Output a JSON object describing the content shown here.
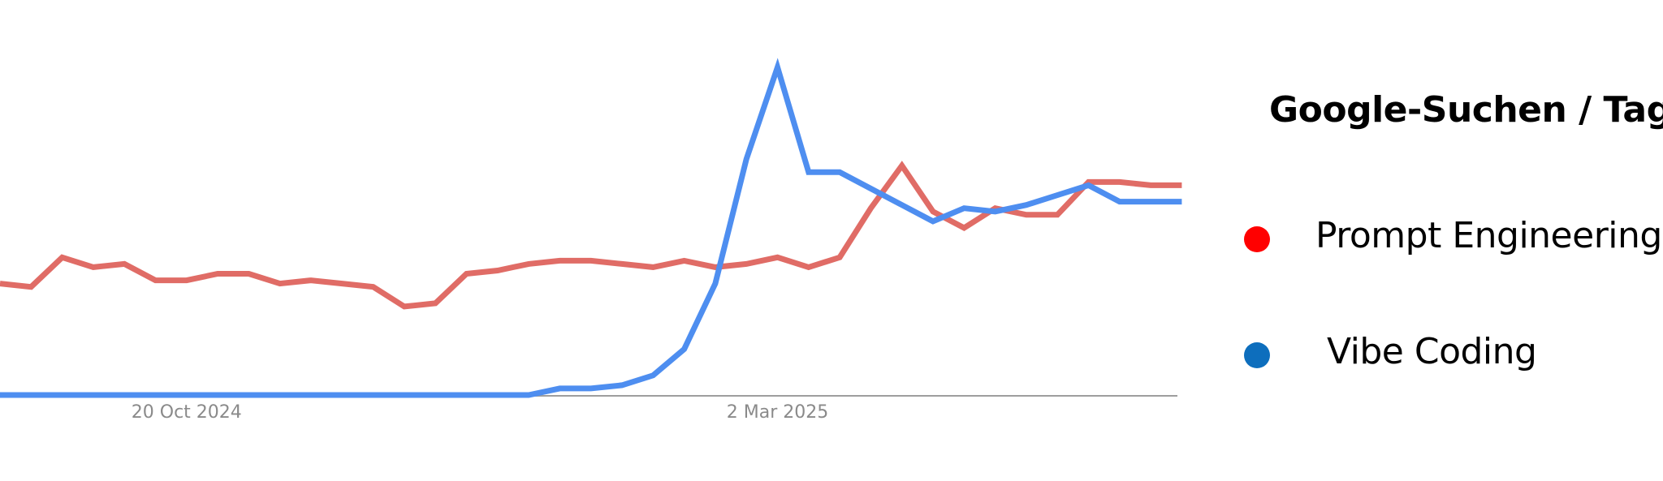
{
  "chart_data": {
    "type": "line",
    "title": "",
    "legend_title": "Google-Suchen / Tag",
    "x_tick_labels": [
      "20 Oct 2024",
      "2 Mar 2025"
    ],
    "x": [
      "2024-09-08",
      "2024-09-15",
      "2024-09-22",
      "2024-09-29",
      "2024-10-06",
      "2024-10-13",
      "2024-10-20",
      "2024-10-27",
      "2024-11-03",
      "2024-11-10",
      "2024-11-17",
      "2024-11-24",
      "2024-12-01",
      "2024-12-08",
      "2024-12-15",
      "2024-12-22",
      "2024-12-29",
      "2025-01-05",
      "2025-01-12",
      "2025-01-19",
      "2025-01-26",
      "2025-02-02",
      "2025-02-09",
      "2025-02-16",
      "2025-02-23",
      "2025-03-02",
      "2025-03-09",
      "2025-03-16",
      "2025-03-23",
      "2025-03-30",
      "2025-04-06",
      "2025-04-13",
      "2025-04-20",
      "2025-04-27",
      "2025-05-04",
      "2025-05-11",
      "2025-05-18",
      "2025-05-25",
      "2025-06-01"
    ],
    "series": [
      {
        "name": "Prompt Engineering",
        "color": "#e06c66",
        "legend_color": "#ff0000",
        "values": [
          34,
          33,
          42,
          39,
          40,
          35,
          35,
          37,
          37,
          34,
          35,
          34,
          33,
          27,
          28,
          37,
          38,
          40,
          41,
          41,
          40,
          39,
          41,
          39,
          40,
          42,
          39,
          42,
          57,
          70,
          56,
          51,
          57,
          55,
          55,
          65,
          65,
          64,
          64
        ]
      },
      {
        "name": "Vibe Coding",
        "color": "#4e8ef0",
        "legend_color": "#0d6ebd",
        "values": [
          0,
          0,
          0,
          0,
          0,
          0,
          0,
          0,
          0,
          0,
          0,
          0,
          0,
          0,
          0,
          0,
          0,
          0,
          2,
          2,
          3,
          6,
          14,
          34,
          72,
          100,
          68,
          68,
          63,
          58,
          53,
          57,
          56,
          58,
          61,
          64,
          59,
          59,
          59
        ]
      }
    ],
    "ylim": [
      0,
      100
    ],
    "grid": false,
    "legend_position": "right"
  }
}
